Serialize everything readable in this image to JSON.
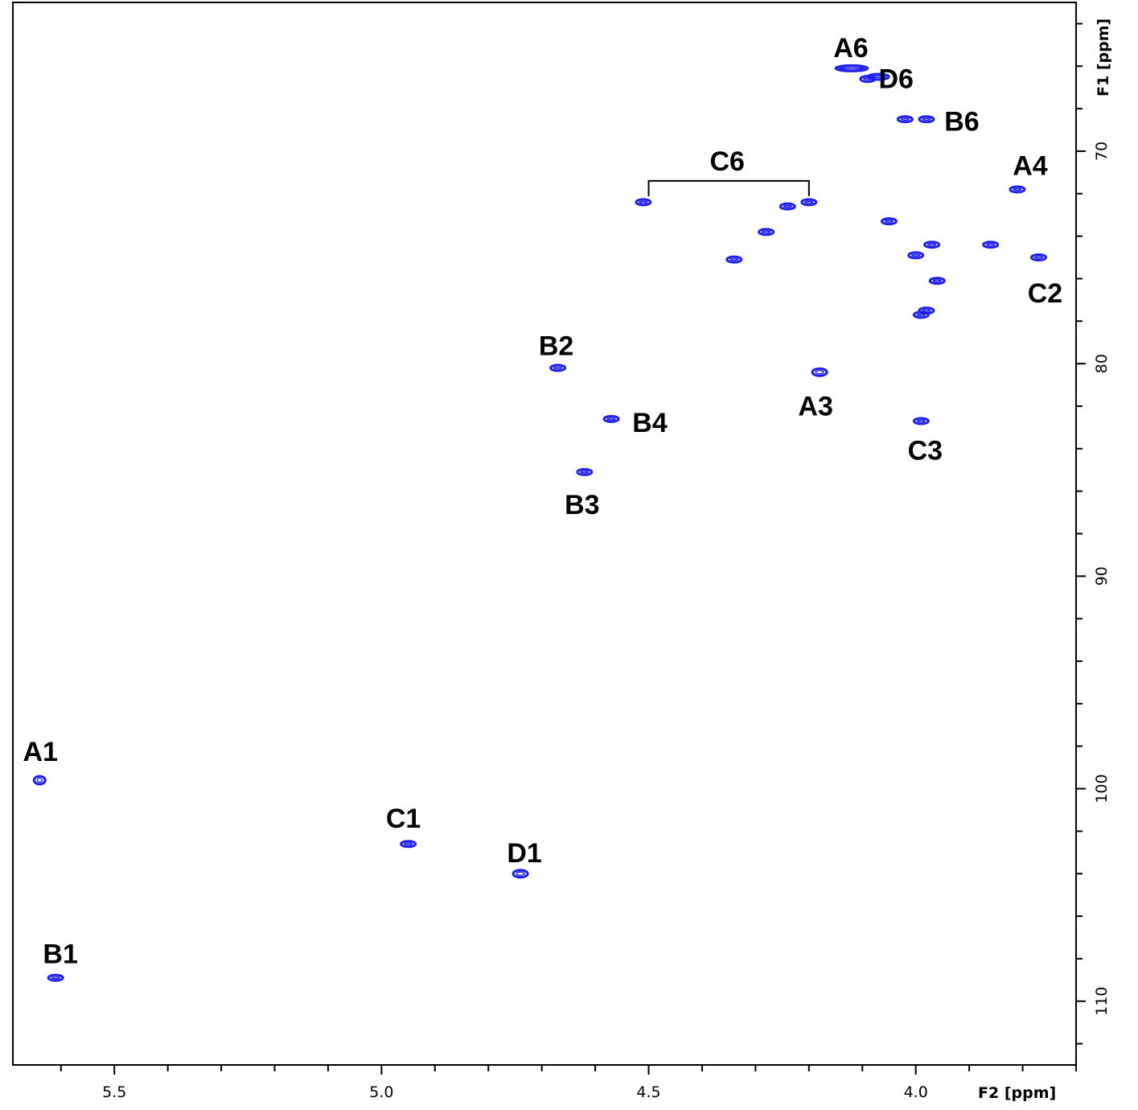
{
  "chart_data": {
    "type": "scatter",
    "title": "",
    "xlabel": "F2 [ppm]",
    "ylabel": "F1 [ppm]",
    "xlim": [
      5.69,
      3.7
    ],
    "ylim": [
      63.0,
      113.0
    ],
    "x_reversed": true,
    "y_inverted": true,
    "x_ticks": [
      5.5,
      5.0,
      4.5,
      4.0
    ],
    "x_tick_labels": [
      "5.5",
      "5.0",
      "4.5",
      "4.0"
    ],
    "y_ticks": [
      70,
      80,
      90,
      100,
      110
    ],
    "y_tick_labels": [
      "70",
      "80",
      "90",
      "100",
      "110"
    ],
    "grid": false,
    "legend": "none",
    "marker_color": "#1e1ef0",
    "peaks": [
      {
        "label": "A6",
        "x": 4.12,
        "y": 66.1
      },
      {
        "label": "",
        "x": 4.09,
        "y": 66.6
      },
      {
        "label": "D6",
        "x": 4.07,
        "y": 66.5
      },
      {
        "label": "",
        "x": 4.02,
        "y": 68.5
      },
      {
        "label": "B6",
        "x": 3.98,
        "y": 68.5
      },
      {
        "label": "A4",
        "x": 3.81,
        "y": 71.8
      },
      {
        "label": "",
        "x": 4.51,
        "y": 72.4
      },
      {
        "label": "",
        "x": 4.24,
        "y": 72.6
      },
      {
        "label": "",
        "x": 4.2,
        "y": 72.4
      },
      {
        "label": "",
        "x": 4.28,
        "y": 73.8
      },
      {
        "label": "",
        "x": 4.34,
        "y": 75.1
      },
      {
        "label": "",
        "x": 4.05,
        "y": 73.3
      },
      {
        "label": "",
        "x": 3.97,
        "y": 74.4
      },
      {
        "label": "",
        "x": 3.86,
        "y": 74.4
      },
      {
        "label": "",
        "x": 4.0,
        "y": 74.9
      },
      {
        "label": "C2",
        "x": 3.77,
        "y": 75.0
      },
      {
        "label": "",
        "x": 3.96,
        "y": 76.1
      },
      {
        "label": "",
        "x": 3.99,
        "y": 77.7
      },
      {
        "label": "",
        "x": 3.98,
        "y": 77.5
      },
      {
        "label": "B2",
        "x": 4.67,
        "y": 80.2
      },
      {
        "label": "A3",
        "x": 4.18,
        "y": 80.4
      },
      {
        "label": "B4",
        "x": 4.57,
        "y": 82.6
      },
      {
        "label": "C3",
        "x": 3.99,
        "y": 82.7
      },
      {
        "label": "B3",
        "x": 4.62,
        "y": 85.1
      },
      {
        "label": "A1",
        "x": 5.64,
        "y": 99.6
      },
      {
        "label": "C1",
        "x": 4.95,
        "y": 102.6
      },
      {
        "label": "D1",
        "x": 4.74,
        "y": 104.0
      },
      {
        "label": "B1",
        "x": 5.61,
        "y": 108.9
      }
    ],
    "annotations": [
      {
        "text": "C6",
        "bracket_x": [
          4.5,
          4.2
        ],
        "y": 71.4
      }
    ]
  }
}
